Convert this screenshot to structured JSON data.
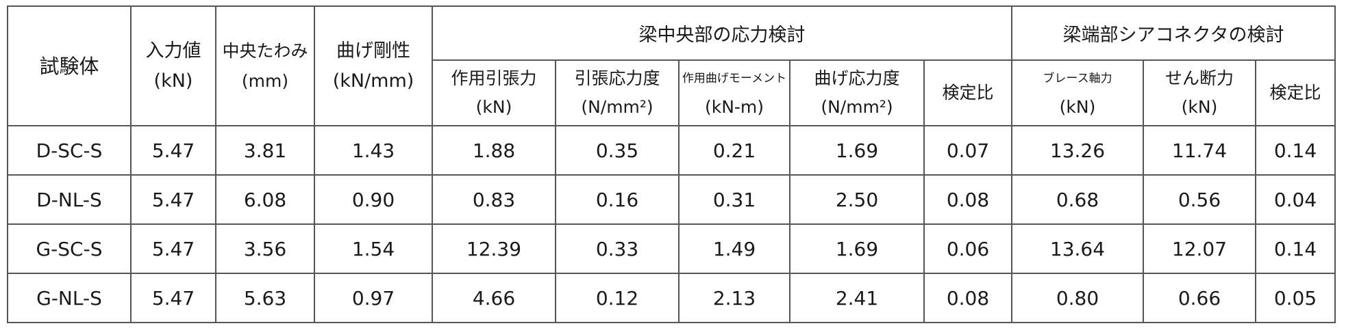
{
  "table": {
    "group_headers": {
      "center": "梁中央部の応力検討",
      "end": "梁端部シアコネクタの検討"
    },
    "header_specimen": "試験体",
    "header_input": {
      "name": "入力値",
      "unit": "(kN)"
    },
    "header_deflection": {
      "name": "中央たわみ",
      "unit": "(mm)"
    },
    "header_stiffness": {
      "name": "曲げ剛性",
      "unit": "(kN/mm)"
    },
    "sub_headers": [
      {
        "name": "作用引張力",
        "unit": "(kN)"
      },
      {
        "name": "引張応力度",
        "unit": "(N/mm²)"
      },
      {
        "name": "作用曲げモーメント",
        "unit": "(kN-m)"
      },
      {
        "name": "曲げ応力度",
        "unit": "(N/mm²)"
      },
      {
        "name": "検定比",
        "unit": ""
      },
      {
        "name": "ブレース軸力",
        "unit": "(kN)"
      },
      {
        "name": "せん断力",
        "unit": "(kN)"
      },
      {
        "name": "検定比",
        "unit": ""
      }
    ],
    "rows": [
      {
        "specimen": "D-SC-S",
        "values": [
          "5.47",
          "3.81",
          "1.43",
          "1.88",
          "0.35",
          "0.21",
          "1.69",
          "0.07",
          "13.26",
          "11.74",
          "0.14"
        ]
      },
      {
        "specimen": "D-NL-S",
        "values": [
          "5.47",
          "6.08",
          "0.90",
          "0.83",
          "0.16",
          "0.31",
          "2.50",
          "0.08",
          "0.68",
          "0.56",
          "0.04"
        ]
      },
      {
        "specimen": "G-SC-S",
        "values": [
          "5.47",
          "3.56",
          "1.54",
          "12.39",
          "0.33",
          "1.49",
          "1.69",
          "0.06",
          "13.64",
          "12.07",
          "0.14"
        ]
      },
      {
        "specimen": "G-NL-S",
        "values": [
          "5.47",
          "5.63",
          "0.97",
          "4.66",
          "0.12",
          "2.13",
          "2.41",
          "0.08",
          "0.80",
          "0.66",
          "0.05"
        ]
      }
    ]
  }
}
